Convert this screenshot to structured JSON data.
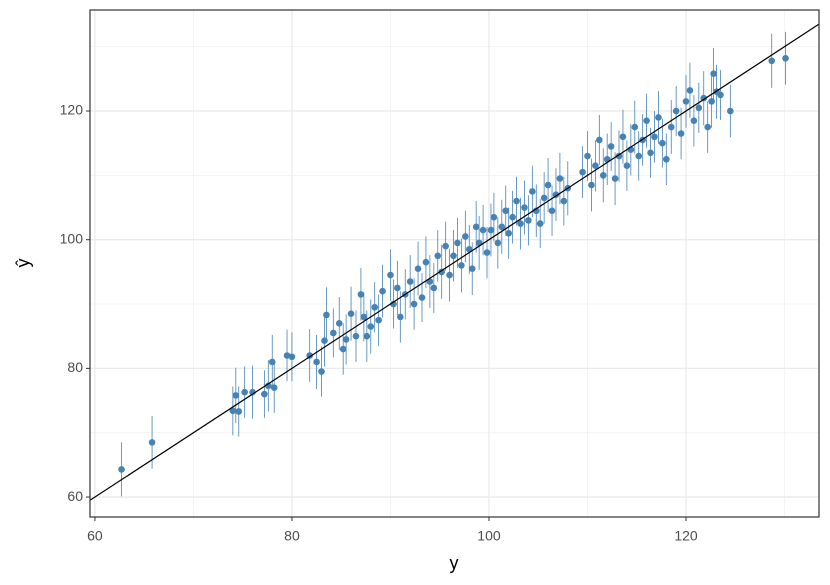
{
  "chart_data": {
    "type": "scatter",
    "x_label": "y",
    "y_label": "ŷ",
    "color": "#4682b4",
    "grid": true,
    "identity_line": true,
    "xlim": [
      59.5,
      133.5
    ],
    "ylim": [
      56.9,
      135.7
    ],
    "xticks": [
      60,
      80,
      100,
      120
    ],
    "yticks": [
      60,
      80,
      100,
      120
    ],
    "x": [
      62.7,
      65.8,
      74,
      74.3,
      74.6,
      75.2,
      76,
      77.2,
      77.6,
      78,
      78.2,
      79.5,
      80,
      81.8,
      82.5,
      83,
      83.3,
      83.5,
      84.2,
      84.8,
      85.2,
      85.5,
      86,
      86.5,
      87,
      87.3,
      87.6,
      88,
      88.4,
      88.8,
      89.2,
      90,
      90.3,
      90.7,
      91,
      91.5,
      92,
      92.4,
      92.8,
      93.2,
      93.6,
      94,
      94.4,
      94.8,
      95.2,
      95.6,
      96,
      96.4,
      96.8,
      97.2,
      97.6,
      98,
      98.3,
      98.7,
      99,
      99.4,
      99.8,
      100.2,
      100.5,
      100.9,
      101.3,
      101.7,
      102,
      102.4,
      102.8,
      103.2,
      103.6,
      104,
      104.4,
      104.8,
      105.2,
      105.6,
      106,
      106.4,
      106.8,
      107.2,
      107.6,
      108,
      109.5,
      110,
      110.4,
      110.8,
      111.2,
      111.6,
      112,
      112.4,
      112.8,
      113.2,
      113.6,
      114,
      114.4,
      114.8,
      115.2,
      115.6,
      116,
      116.4,
      116.8,
      117.2,
      117.6,
      118,
      118.5,
      119,
      119.5,
      120,
      120.4,
      120.8,
      121.3,
      121.8,
      122.2,
      122.6,
      122.8,
      123.1,
      123.5,
      124.5,
      128.7,
      130.1
    ],
    "values": [
      64.3,
      68.5,
      73.4,
      75.8,
      73.3,
      76.3,
      76.3,
      76,
      77.3,
      81,
      77,
      82,
      81.8,
      82,
      81,
      79.5,
      84.3,
      88.3,
      85.5,
      87,
      83,
      84.5,
      88.5,
      85,
      91.5,
      88,
      85,
      86.5,
      89.5,
      87.5,
      92,
      94.5,
      90,
      92.5,
      88,
      91.5,
      93.5,
      90,
      95.5,
      91,
      96.5,
      93.5,
      92.5,
      97.5,
      95,
      99,
      94.5,
      97.5,
      99.5,
      96,
      100.5,
      98.5,
      95.5,
      102,
      99.5,
      101.5,
      98,
      101.5,
      103.5,
      99.5,
      102,
      104.5,
      101,
      103.5,
      106,
      102.5,
      105,
      103,
      107.5,
      104.5,
      102.5,
      106.5,
      108.5,
      104.5,
      107,
      109.5,
      106,
      108,
      110.5,
      113,
      108.5,
      111.5,
      115.5,
      110,
      112.5,
      114.5,
      109.5,
      113,
      116,
      111.5,
      114,
      117.5,
      113,
      115.5,
      118.5,
      113.5,
      116,
      119,
      115,
      112.5,
      117.5,
      120,
      116.5,
      121.5,
      123.2,
      118.5,
      120.5,
      122,
      117.5,
      121.5,
      125.8,
      123,
      122.5,
      120,
      127.8,
      128.2
    ],
    "errors": [
      4.2,
      4.1,
      3.8,
      4.3,
      3.9,
      4,
      4.1,
      3.7,
      4,
      4.2,
      3.9,
      4,
      3.8,
      4.1,
      4.2,
      3.9,
      4,
      4.3,
      3.8,
      4.1,
      4,
      3.9,
      4.2,
      4,
      4.1,
      3.8,
      4,
      4.2,
      3.9,
      4,
      4.1,
      4,
      3.8,
      4.2,
      4,
      3.9,
      4.1,
      4,
      4.2,
      3.8,
      4,
      4.1,
      3.9,
      4,
      4.2,
      3.8,
      4.1,
      4,
      3.9,
      4.2,
      4,
      3.8,
      4.1,
      4,
      4.2,
      3.9,
      4,
      4.1,
      3.8,
      4,
      4.2,
      3.9,
      4,
      4.1,
      3.8,
      4,
      4.2,
      3.9,
      4,
      4.1,
      3.8,
      4,
      4.2,
      3.9,
      4.1,
      4,
      3.8,
      4.2,
      4,
      3.9,
      4.1,
      4,
      3.9,
      4.2,
      4,
      3.8,
      4.1,
      4,
      4.2,
      3.9,
      4,
      4.1,
      3.8,
      4,
      4.2,
      3.9,
      4,
      4.1,
      3.8,
      4,
      4.2,
      3.9,
      4,
      4.1,
      4.3,
      4,
      3.9,
      4.2,
      4,
      4.1,
      4,
      4.2,
      3.9,
      4.1,
      4.2,
      4.1
    ]
  }
}
